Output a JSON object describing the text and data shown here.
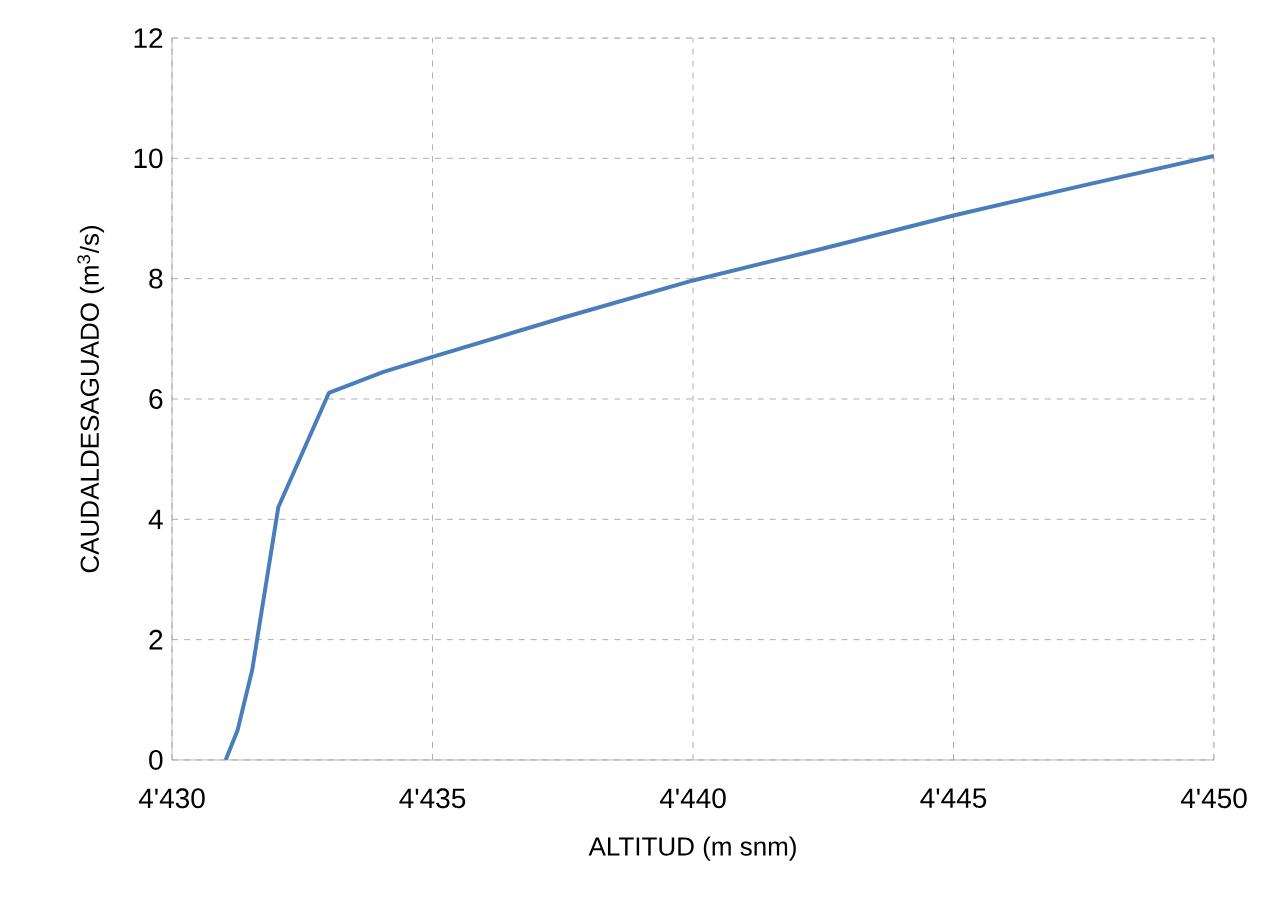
{
  "chart_data": {
    "type": "line",
    "xlabel": "ALTITUD (m snm)",
    "ylabel": "CAUDALDESAGUADO (m$^{3}$/s)",
    "x": [
      4431.03,
      4431.26,
      4431.54,
      4432.04,
      4433.01,
      4434.06,
      4435,
      4437.5,
      4440,
      4442.5,
      4445,
      4447.5,
      4450
    ],
    "series": [
      {
        "color": "#4a7ebb",
        "values": [
          0,
          0.5,
          1.5,
          4.2,
          6.1,
          6.45,
          6.7,
          7.35,
          7.97,
          8.5,
          9.05,
          9.55,
          10.04
        ]
      }
    ],
    "xlim": [
      4430,
      4450
    ],
    "ylim": [
      0,
      12
    ],
    "xticks": [
      {
        "value": 4430,
        "label": "4'430"
      },
      {
        "value": 4435,
        "label": "4'435"
      },
      {
        "value": 4440,
        "label": "4'440"
      },
      {
        "value": 4445,
        "label": "4'445"
      },
      {
        "value": 4450,
        "label": "4'450"
      }
    ],
    "yticks": [
      0,
      2,
      4,
      6,
      8,
      10,
      12
    ],
    "grid": true,
    "marker": "none",
    "line_style": "solid"
  }
}
